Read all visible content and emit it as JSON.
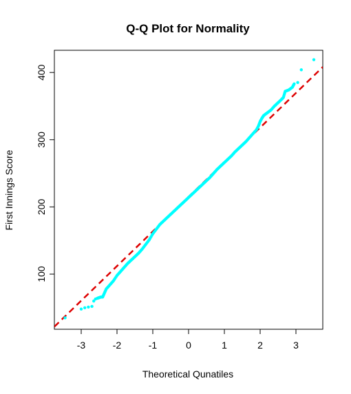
{
  "chart_data": {
    "type": "scatter",
    "title": "Q-Q Plot for Normality",
    "xlabel": "Theoretical Qunatiles",
    "ylabel": "First Innings Score",
    "xlim": [
      -3.75,
      3.75
    ],
    "ylim": [
      18,
      433
    ],
    "x_ticks": [
      -3,
      -2,
      -1,
      0,
      1,
      2,
      3
    ],
    "x_tick_labels": [
      "-3",
      "-2",
      "-1",
      "0",
      "1",
      "2",
      "3"
    ],
    "y_ticks": [
      100,
      200,
      300,
      400
    ],
    "y_tick_labels": [
      "100",
      "200",
      "300",
      "400"
    ],
    "grid": false,
    "legend": "none",
    "point_color": "#00FFFF",
    "line_color": "#DD0000",
    "reference_line": {
      "intercept": 215,
      "slope": 51.5,
      "style": "dashed"
    },
    "series": [
      {
        "values": [
          [
            -3.45,
            35
          ],
          [
            -3.0,
            48
          ],
          [
            -2.9,
            50
          ],
          [
            -2.8,
            51
          ],
          [
            -2.7,
            52
          ],
          [
            -2.65,
            60
          ],
          [
            -2.6,
            63
          ],
          [
            -2.55,
            64
          ],
          [
            -2.5,
            65
          ],
          [
            -2.45,
            66
          ],
          [
            -2.4,
            66
          ],
          [
            -2.35,
            72
          ],
          [
            -2.3,
            78
          ],
          [
            -2.2,
            84
          ],
          [
            -2.1,
            90
          ],
          [
            -2.0,
            98
          ],
          [
            -1.9,
            104
          ],
          [
            -1.8,
            110
          ],
          [
            -1.7,
            116
          ],
          [
            -1.6,
            121
          ],
          [
            -1.5,
            126
          ],
          [
            -1.4,
            131
          ],
          [
            -1.3,
            137
          ],
          [
            -1.2,
            144
          ],
          [
            -1.1,
            151
          ],
          [
            -1.0,
            160
          ],
          [
            -0.9,
            167
          ],
          [
            -0.8,
            174
          ],
          [
            -0.7,
            179
          ],
          [
            -0.6,
            184
          ],
          [
            -0.5,
            189
          ],
          [
            -0.4,
            194
          ],
          [
            -0.3,
            199
          ],
          [
            -0.2,
            204
          ],
          [
            -0.1,
            209
          ],
          [
            0.0,
            214
          ],
          [
            0.1,
            219
          ],
          [
            0.2,
            224
          ],
          [
            0.3,
            229
          ],
          [
            0.4,
            234
          ],
          [
            0.5,
            239
          ],
          [
            0.6,
            244
          ],
          [
            0.7,
            250
          ],
          [
            0.8,
            256
          ],
          [
            0.9,
            261
          ],
          [
            1.0,
            266
          ],
          [
            1.1,
            271
          ],
          [
            1.2,
            276
          ],
          [
            1.3,
            282
          ],
          [
            1.4,
            287
          ],
          [
            1.5,
            292
          ],
          [
            1.6,
            297
          ],
          [
            1.7,
            303
          ],
          [
            1.8,
            309
          ],
          [
            1.9,
            315
          ],
          [
            1.95,
            320
          ],
          [
            2.0,
            327
          ],
          [
            2.05,
            332
          ],
          [
            2.1,
            336
          ],
          [
            2.2,
            340
          ],
          [
            2.3,
            344
          ],
          [
            2.4,
            350
          ],
          [
            2.5,
            355
          ],
          [
            2.6,
            360
          ],
          [
            2.65,
            363
          ],
          [
            2.7,
            372
          ],
          [
            2.8,
            374
          ],
          [
            2.9,
            378
          ],
          [
            2.95,
            383
          ],
          [
            3.05,
            385
          ],
          [
            3.15,
            404
          ],
          [
            3.5,
            419
          ]
        ]
      }
    ]
  }
}
